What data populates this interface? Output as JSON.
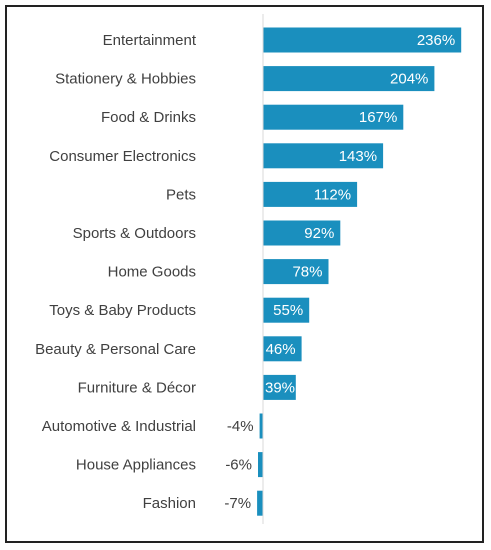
{
  "chart_data": {
    "type": "bar",
    "orientation": "horizontal",
    "categories": [
      "Entertainment",
      "Stationery & Hobbies",
      "Food & Drinks",
      "Consumer Electronics",
      "Pets",
      "Sports & Outdoors",
      "Home Goods",
      "Toys & Baby Products",
      "Beauty & Personal Care",
      "Furniture & Décor",
      "Automotive & Industrial",
      "House Appliances",
      "Fashion"
    ],
    "values": [
      236,
      204,
      167,
      143,
      112,
      92,
      78,
      55,
      46,
      39,
      -4,
      -6,
      -7
    ],
    "value_labels": [
      "236%",
      "204%",
      "167%",
      "143%",
      "112%",
      "92%",
      "78%",
      "55%",
      "46%",
      "39%",
      "-4%",
      "-6%",
      "-7%"
    ],
    "title": "",
    "xlabel": "",
    "ylabel": "",
    "grid": false,
    "legend": "none",
    "bar_color": "#1a8fbe"
  }
}
